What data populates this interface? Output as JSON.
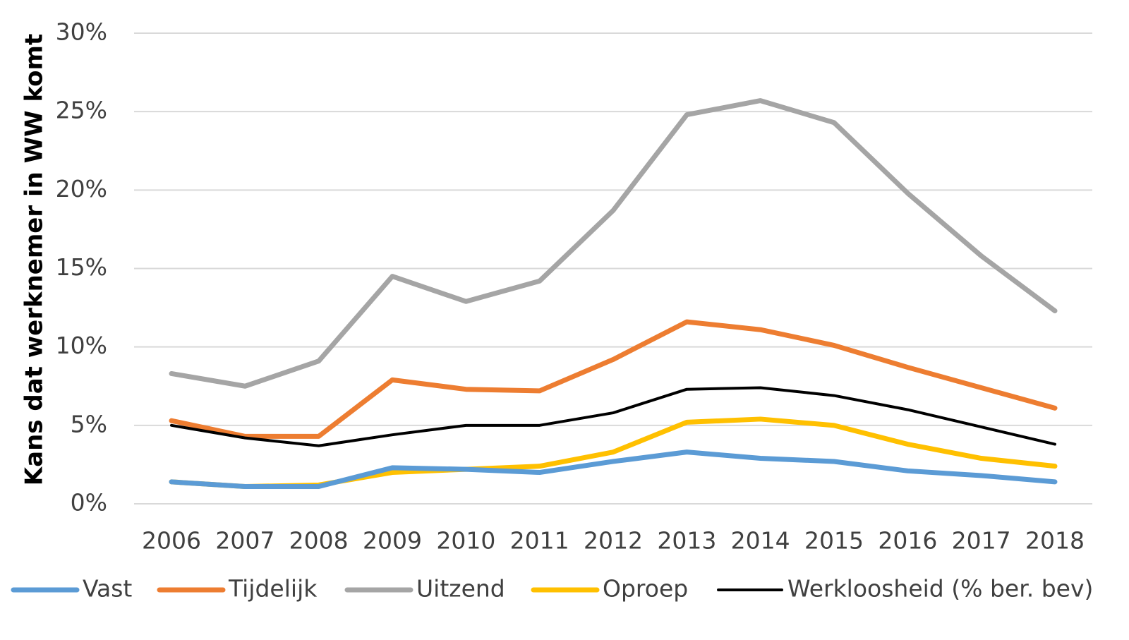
{
  "chart_data": {
    "type": "line",
    "title": "",
    "xlabel": "",
    "ylabel": "Kans dat werknemer in WW komt",
    "categories": [
      "2006",
      "2007",
      "2008",
      "2009",
      "2010",
      "2011",
      "2012",
      "2013",
      "2014",
      "2015",
      "2016",
      "2017",
      "2018"
    ],
    "ylim": [
      0,
      30
    ],
    "yticks": [
      0,
      5,
      10,
      15,
      20,
      25,
      30
    ],
    "ytick_labels": [
      "0%",
      "5%",
      "10%",
      "15%",
      "20%",
      "25%",
      "30%"
    ],
    "grid": true,
    "legend_position": "bottom",
    "series": [
      {
        "name": "Vast",
        "color": "#5B9BD5",
        "values": [
          1.4,
          1.1,
          1.1,
          2.3,
          2.2,
          2.0,
          2.7,
          3.3,
          2.9,
          2.7,
          2.1,
          1.8,
          1.4
        ]
      },
      {
        "name": "Tijdelijk",
        "color": "#ED7D31",
        "values": [
          5.3,
          4.3,
          4.3,
          7.9,
          7.3,
          7.2,
          9.2,
          11.6,
          11.1,
          10.1,
          8.7,
          7.4,
          6.1
        ]
      },
      {
        "name": "Uitzend",
        "color": "#A5A5A5",
        "values": [
          8.3,
          7.5,
          9.1,
          14.5,
          12.9,
          14.2,
          18.7,
          24.8,
          25.7,
          24.3,
          19.8,
          15.8,
          12.3
        ]
      },
      {
        "name": "Oproep",
        "color": "#FFC000",
        "values": [
          1.4,
          1.1,
          1.2,
          2.0,
          2.2,
          2.4,
          3.3,
          5.2,
          5.4,
          5.0,
          3.8,
          2.9,
          2.4
        ]
      },
      {
        "name": "Werkloosheid (% ber. bev)",
        "color": "#000000",
        "values": [
          5.0,
          4.2,
          3.7,
          4.4,
          5.0,
          5.0,
          5.8,
          7.3,
          7.4,
          6.9,
          6.0,
          4.9,
          3.8
        ]
      }
    ]
  }
}
